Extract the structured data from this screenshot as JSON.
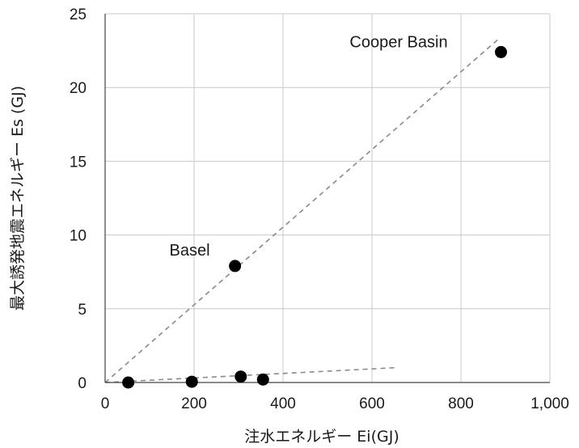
{
  "chart_data": {
    "type": "scatter",
    "title": "",
    "xlabel": "注水エネルギー Ei(GJ)",
    "ylabel": "最大誘発地震エネルギー Es (GJ)",
    "xlim": [
      0,
      1000
    ],
    "ylim": [
      0,
      25
    ],
    "x_ticks": [
      0,
      200,
      400,
      600,
      800,
      1000
    ],
    "x_tick_labels": [
      "0",
      "200",
      "400",
      "600",
      "800",
      "1,000"
    ],
    "y_ticks": [
      0,
      5,
      10,
      15,
      20,
      25
    ],
    "y_tick_labels": [
      "0",
      "5",
      "10",
      "15",
      "20",
      "25"
    ],
    "grid": true,
    "series": [
      {
        "points": [
          {
            "x": 52,
            "y": 0.0
          },
          {
            "x": 195,
            "y": 0.05
          },
          {
            "x": 305,
            "y": 0.4
          },
          {
            "x": 355,
            "y": 0.2
          },
          {
            "x": 292,
            "y": 7.9
          },
          {
            "x": 890,
            "y": 22.4
          }
        ]
      }
    ],
    "trendlines": [
      {
        "from": [
          0,
          0
        ],
        "to": [
          885,
          23.3
        ]
      },
      {
        "from": [
          0,
          0
        ],
        "to": [
          650,
          1.0
        ]
      }
    ],
    "annotations": [
      {
        "text": "Cooper Basin",
        "x": 660,
        "y": 23.1
      },
      {
        "text": "Basel",
        "x": 190,
        "y": 9.0
      }
    ],
    "colors": {
      "points": "#000000",
      "grid": "#c8c8c8",
      "trend": "#8a8a8a"
    }
  }
}
